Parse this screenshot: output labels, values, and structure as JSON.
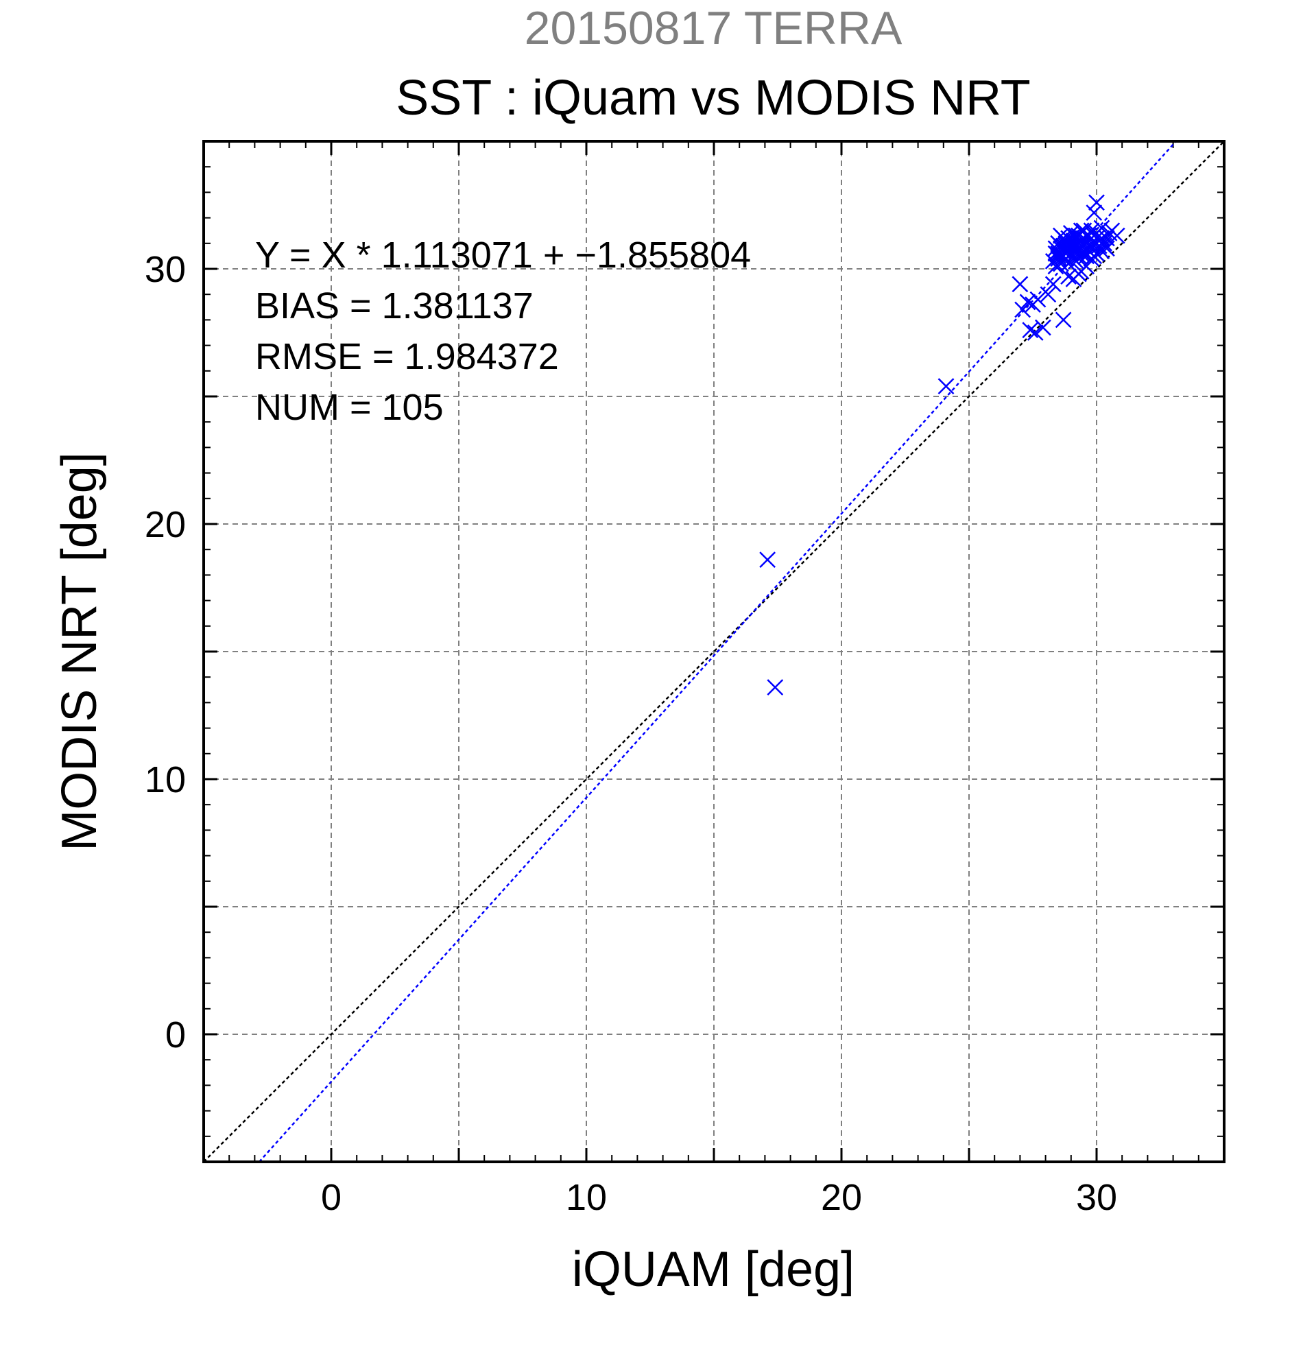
{
  "chart_data": {
    "type": "scatter",
    "title": "20150817 TERRA",
    "subtitle": "SST : iQuam vs MODIS NRT",
    "xlabel": "iQUAM [deg]",
    "ylabel": "MODIS NRT [deg]",
    "xlim": [
      -5,
      35
    ],
    "ylim": [
      -5,
      35
    ],
    "xticks": [
      0,
      10,
      20,
      30
    ],
    "yticks": [
      0,
      10,
      20,
      30
    ],
    "xtick_labels": [
      "0",
      "10",
      "20",
      "30"
    ],
    "ytick_labels": [
      "0",
      "10",
      "20",
      "30"
    ],
    "grid": true,
    "annotations": [
      "Y = X * 1.113071 + −1.855804",
      "BIAS = 1.381137",
      "RMSE = 1.984372",
      "NUM = 105"
    ],
    "reference_line": {
      "slope": 1,
      "intercept": 0,
      "color": "#000000",
      "style": "dotted"
    },
    "fit_line": {
      "slope": 1.113071,
      "intercept": -1.855804,
      "color": "#0000ff",
      "style": "dotted"
    },
    "marker": "x",
    "series": [
      {
        "color": "#0000ff",
        "points": [
          [
            17.1,
            18.6
          ],
          [
            17.4,
            13.6
          ],
          [
            24.1,
            25.4
          ],
          [
            27.0,
            29.4
          ],
          [
            27.1,
            28.4
          ],
          [
            27.3,
            28.7
          ],
          [
            27.5,
            28.6
          ],
          [
            27.4,
            27.6
          ],
          [
            27.6,
            27.5
          ],
          [
            27.7,
            28.8
          ],
          [
            27.9,
            27.7
          ],
          [
            28.1,
            29.0
          ],
          [
            28.3,
            29.4
          ],
          [
            28.7,
            28.0
          ],
          [
            28.3,
            30.3
          ],
          [
            28.5,
            30.6
          ],
          [
            28.4,
            30.1
          ],
          [
            28.6,
            30.8
          ],
          [
            28.7,
            30.5
          ],
          [
            28.8,
            31.0
          ],
          [
            28.9,
            30.2
          ],
          [
            28.6,
            31.3
          ],
          [
            28.8,
            30.7
          ],
          [
            29.0,
            30.9
          ],
          [
            29.1,
            30.4
          ],
          [
            28.9,
            31.2
          ],
          [
            29.2,
            30.6
          ],
          [
            29.0,
            31.4
          ],
          [
            28.7,
            30.9
          ],
          [
            29.3,
            30.8
          ],
          [
            29.1,
            31.1
          ],
          [
            28.5,
            30.4
          ],
          [
            29.4,
            30.9
          ],
          [
            29.5,
            30.6
          ],
          [
            29.3,
            31.3
          ],
          [
            29.6,
            31.0
          ],
          [
            29.2,
            30.3
          ],
          [
            29.7,
            31.3
          ],
          [
            29.8,
            30.8
          ],
          [
            29.5,
            31.5
          ],
          [
            29.9,
            31.1
          ],
          [
            30.0,
            31.4
          ],
          [
            30.1,
            30.9
          ],
          [
            30.2,
            31.6
          ],
          [
            30.4,
            31.2
          ],
          [
            30.6,
            31.5
          ],
          [
            30.8,
            31.3
          ],
          [
            30.3,
            30.9
          ],
          [
            30.0,
            32.6
          ],
          [
            29.9,
            32.2
          ],
          [
            29.4,
            29.9
          ],
          [
            29.1,
            29.6
          ],
          [
            28.9,
            29.7
          ],
          [
            29.3,
            29.8
          ],
          [
            29.6,
            30.1
          ],
          [
            30.2,
            30.7
          ],
          [
            29.8,
            30.4
          ],
          [
            28.4,
            30.6
          ],
          [
            28.6,
            30.2
          ],
          [
            28.8,
            30.4
          ],
          [
            29.0,
            30.6
          ],
          [
            29.2,
            30.9
          ],
          [
            29.4,
            31.1
          ],
          [
            29.6,
            30.8
          ],
          [
            29.8,
            31.0
          ],
          [
            30.0,
            30.6
          ],
          [
            28.5,
            31.0
          ],
          [
            28.7,
            31.2
          ],
          [
            28.9,
            30.7
          ],
          [
            29.1,
            30.9
          ],
          [
            29.3,
            30.5
          ],
          [
            29.5,
            30.9
          ],
          [
            29.7,
            30.7
          ],
          [
            29.9,
            30.5
          ],
          [
            28.4,
            30.8
          ],
          [
            28.6,
            30.6
          ],
          [
            28.8,
            30.9
          ],
          [
            29.0,
            31.1
          ],
          [
            29.2,
            31.3
          ],
          [
            29.4,
            31.5
          ],
          [
            29.6,
            31.3
          ],
          [
            29.8,
            31.5
          ],
          [
            30.0,
            31.0
          ],
          [
            30.2,
            31.2
          ],
          [
            30.4,
            30.8
          ],
          [
            28.5,
            30.5
          ],
          [
            28.7,
            30.7
          ],
          [
            28.9,
            30.9
          ],
          [
            29.1,
            31.3
          ],
          [
            29.3,
            31.0
          ],
          [
            29.5,
            30.7
          ],
          [
            29.7,
            30.9
          ],
          [
            29.9,
            31.3
          ],
          [
            30.1,
            31.1
          ],
          [
            28.6,
            30.9
          ],
          [
            28.8,
            31.1
          ],
          [
            29.0,
            30.8
          ],
          [
            29.2,
            30.7
          ],
          [
            29.4,
            30.6
          ],
          [
            29.6,
            30.5
          ],
          [
            29.8,
            30.9
          ],
          [
            30.0,
            31.2
          ],
          [
            30.3,
            31.0
          ],
          [
            30.5,
            31.4
          ],
          [
            29.5,
            31.2
          ]
        ]
      }
    ]
  }
}
